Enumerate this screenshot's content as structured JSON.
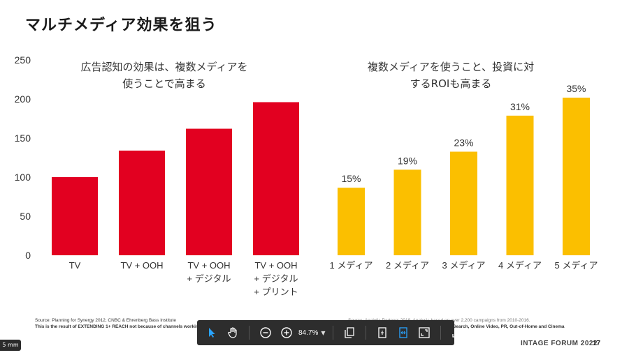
{
  "slide": {
    "title": "マルチメディア効果を狙う",
    "subtitle_left_1": "広告認知の効果は、複数メディアを",
    "subtitle_left_2": "使うことで高まる",
    "subtitle_right_1": "複数メディアを使うこと、投資に対",
    "subtitle_right_2": "するROIも高まる",
    "source_left_1": "Source: Planning for Synergy 2012, CNBC & Ehrenberg Bass Institute",
    "source_left_2": "This is the result of EXTENDING 1+ REACH not because of channels working",
    "source_right_1": "Source: Analytic Partners 2018, Analysis based on over 2,200 campaigns from 2010-2016.",
    "source_right_2": "Search, Online Video, PR, Out-of-Home and Cinema",
    "footer_brand": "INTAGE FORUM 2022",
    "page_number": "17",
    "corner_label": "5 mm"
  },
  "chart_data": [
    {
      "type": "bar",
      "categories": [
        "TV",
        "TV + OOH",
        "TV + OOH\n+ デジタル",
        "TV + OOH\n+ デジタル\n+ プリント"
      ],
      "values": [
        100,
        134,
        162,
        196
      ],
      "ylim": [
        0,
        250
      ],
      "yticks": [
        0,
        50,
        100,
        150,
        200,
        250
      ],
      "color": "#e20020",
      "grid": false
    },
    {
      "type": "bar",
      "categories": [
        "1 メディア",
        "2 メディア",
        "3 メディア",
        "4 メディア",
        "5 メディア"
      ],
      "values": [
        15,
        19,
        23,
        31,
        35
      ],
      "value_labels": [
        "15%",
        "19%",
        "23%",
        "31%",
        "35%"
      ],
      "color": "#fbbf00",
      "grid": false
    }
  ],
  "toolbar": {
    "zoom_level": "84.7%",
    "icons": [
      "pointer-icon",
      "hand-icon",
      "zoom-out-icon",
      "zoom-in-icon",
      "zoom-dropdown-icon",
      "copy-icon",
      "fit-page-icon",
      "fit-width-icon",
      "fullscreen-icon",
      "upload-icon"
    ],
    "accent_color": "#29a3ff"
  }
}
